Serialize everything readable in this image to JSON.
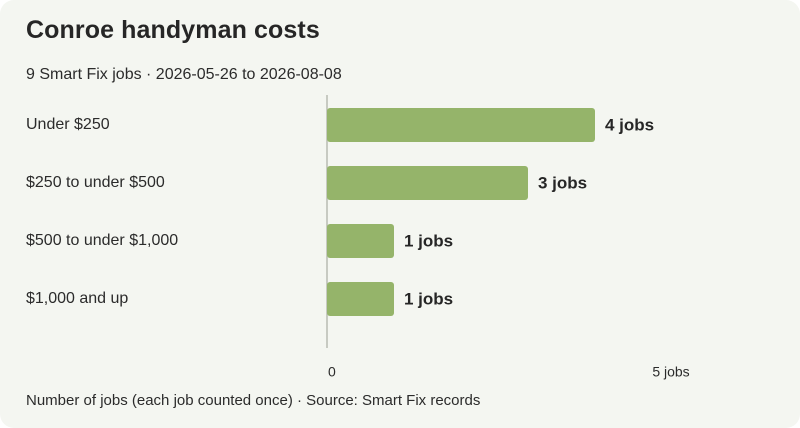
{
  "header": {
    "title": "Conroe handyman costs",
    "subtitle": "9 Smart Fix jobs · 2026-05-26 to 2026-08-08"
  },
  "footer": {
    "note": "Number of jobs (each job counted once) · Source: Smart Fix records"
  },
  "colors": {
    "bar": "#95b46a",
    "background": "#f4f6f1",
    "axis": "#b8bcb2"
  },
  "chart_data": {
    "type": "bar",
    "orientation": "horizontal",
    "categories": [
      "Under $250",
      "$250 to under $500",
      "$500 to under $1,000",
      "$1,000 and up"
    ],
    "values": [
      4,
      3,
      1,
      1
    ],
    "value_labels": [
      "4 jobs",
      "3 jobs",
      "1 jobs",
      "1 jobs"
    ],
    "xlim": [
      0,
      5
    ],
    "ticks": [
      {
        "value": 0,
        "label": "0"
      },
      {
        "value": 5,
        "label": "5 jobs"
      }
    ],
    "grid": false
  }
}
